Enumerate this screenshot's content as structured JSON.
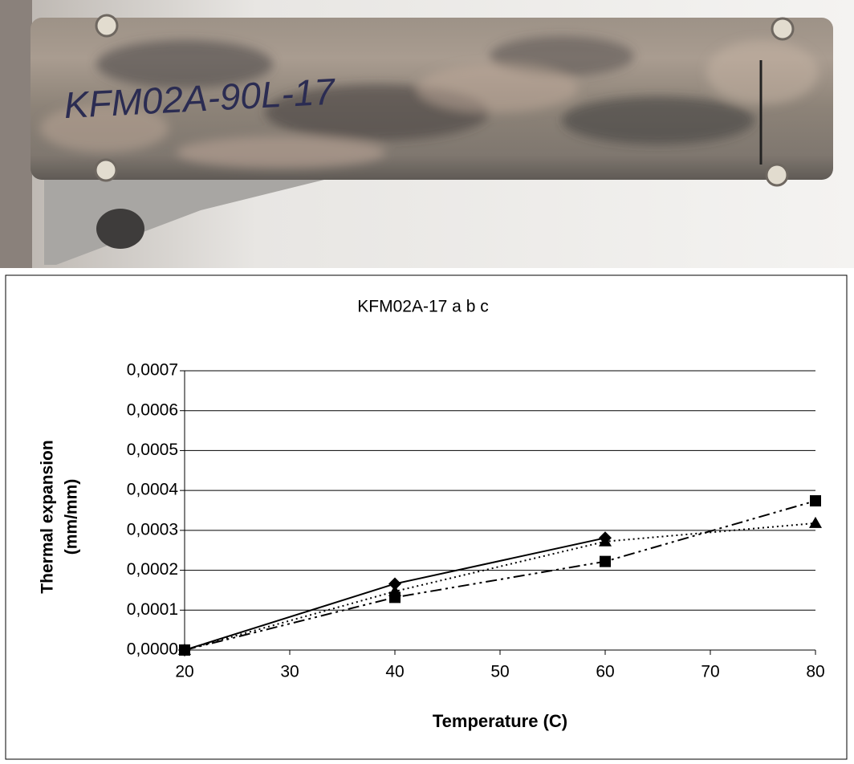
{
  "photo_label": "KFM02A-90L-17",
  "chart_data": {
    "type": "line",
    "title": "KFM02A-17 a b c",
    "x_label": "Temperature (C)",
    "y_label": [
      "Thermal expansion",
      "(mm/mm)"
    ],
    "xlim": [
      20,
      80
    ],
    "xticks": [
      20,
      30,
      40,
      50,
      60,
      70,
      80
    ],
    "ylim": [
      0,
      0.0007
    ],
    "yticks": [
      {
        "value": 0,
        "label": "0,0000"
      },
      {
        "value": 0.0001,
        "label": "0,0001"
      },
      {
        "value": 0.0002,
        "label": "0,0002"
      },
      {
        "value": 0.0003,
        "label": "0,0003"
      },
      {
        "value": 0.0004,
        "label": "0,0004"
      },
      {
        "value": 0.0005,
        "label": "0,0005"
      },
      {
        "value": 0.0006,
        "label": "0,0006"
      },
      {
        "value": 0.0007,
        "label": "0,0007"
      }
    ],
    "grid": true,
    "series": [
      {
        "color": "#000000",
        "marker": "diamond",
        "linestyle": "solid",
        "x": [
          20,
          40,
          60
        ],
        "values": [
          0,
          0.000166,
          0.000281
        ]
      },
      {
        "color": "#000000",
        "marker": "triangle",
        "linestyle": "dotted",
        "x": [
          20,
          40,
          60,
          80
        ],
        "values": [
          0,
          0.000147,
          0.000272,
          0.000318
        ]
      },
      {
        "color": "#000000",
        "marker": "square",
        "linestyle": "dashdot",
        "x": [
          20,
          40,
          60,
          80
        ],
        "values": [
          0,
          0.000132,
          0.000222,
          0.000374
        ]
      }
    ]
  }
}
